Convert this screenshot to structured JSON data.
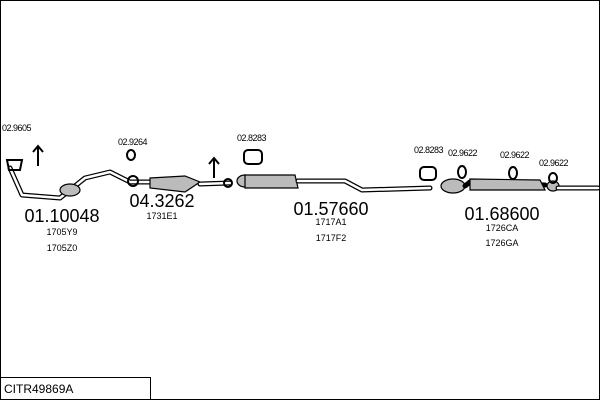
{
  "small_parts": [
    "02.9605",
    "02.9264",
    "02.8283",
    "02.8283",
    "02.9622",
    "02.9622",
    "02.9622"
  ],
  "parts": [
    {
      "number": "01.10048",
      "codes": [
        "1705Y9",
        "1705Z0"
      ]
    },
    {
      "number": "04.3262",
      "codes": [
        "1731E1"
      ]
    },
    {
      "number": "01.57660",
      "codes": [
        "1717A1",
        "1717F2"
      ]
    },
    {
      "number": "01.68600",
      "codes": [
        "1726CA",
        "1726GA"
      ]
    }
  ],
  "footer": {
    "code": "CITR49869A"
  }
}
